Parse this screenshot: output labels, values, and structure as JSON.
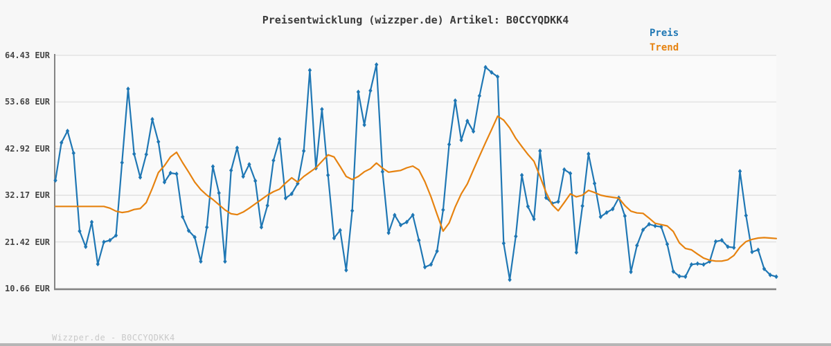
{
  "header": {
    "title": "Preisentwicklung (wizzper.de) Artikel: B0CCYQDKK4"
  },
  "watermark": "Wizzper.de - B0CCYQDKK4",
  "colors": {
    "price": "#1f77b4",
    "trend": "#e6820f",
    "grid": "#e3e3e3",
    "spine": "#848484",
    "background": "#f7f7f7"
  },
  "chart_data": {
    "type": "line",
    "title": "Preisentwicklung (wizzper.de) Artikel: B0CCYQDKK4",
    "xlabel": "",
    "ylabel": "",
    "ylim": [
      10.66,
      64.43
    ],
    "grid": "horizontal",
    "legend_position": "top-right",
    "x_count": 120,
    "y_tick_labels": [
      "64.43 EUR",
      "53.68 EUR",
      "42.92 EUR",
      "32.17 EUR",
      "21.42 EUR",
      "10.66 EUR"
    ],
    "y_tick_values": [
      64.43,
      53.68,
      42.92,
      32.17,
      21.42,
      10.66
    ],
    "series": [
      {
        "name": "Preis",
        "color": "#1f77b4",
        "marker": "diamond",
        "values": [
          35.6,
          44.3,
          47.0,
          41.9,
          23.9,
          20.3,
          26.0,
          16.3,
          21.4,
          21.8,
          22.9,
          39.7,
          56.7,
          41.7,
          36.3,
          41.6,
          49.7,
          44.5,
          35.2,
          37.3,
          37.1,
          27.2,
          24.0,
          22.5,
          16.9,
          24.8,
          38.8,
          32.7,
          16.9,
          37.9,
          43.1,
          36.5,
          39.3,
          35.5,
          24.8,
          29.8,
          40.2,
          45.1,
          31.5,
          32.5,
          34.9,
          42.4,
          61.0,
          38.4,
          52.0,
          36.8,
          22.3,
          24.1,
          14.9,
          28.6,
          56.0,
          48.4,
          56.3,
          62.3,
          37.6,
          23.5,
          27.6,
          25.3,
          26.0,
          27.6,
          21.8,
          15.6,
          16.2,
          19.3,
          28.8,
          43.9,
          54.0,
          44.9,
          49.3,
          46.9,
          55.1,
          61.7,
          60.5,
          59.5,
          21.1,
          12.7,
          22.7,
          36.8,
          29.6,
          26.7,
          42.4,
          31.6,
          30.3,
          30.7,
          38.1,
          37.2,
          19.0,
          29.7,
          41.7,
          34.9,
          27.2,
          28.2,
          29.0,
          31.6,
          27.4,
          14.5,
          20.6,
          24.2,
          25.5,
          25.1,
          24.9,
          20.9,
          14.6,
          13.5,
          13.4,
          16.2,
          16.4,
          16.2,
          16.9,
          21.5,
          21.8,
          20.3,
          20.1,
          37.7,
          27.5,
          19.1,
          19.6,
          15.2,
          13.8,
          13.4
        ]
      },
      {
        "name": "Trend",
        "color": "#e6820f",
        "marker": "none",
        "values": [
          29.6,
          29.6,
          29.6,
          29.6,
          29.6,
          29.6,
          29.6,
          29.6,
          29.6,
          29.2,
          28.5,
          28.2,
          28.4,
          28.9,
          29.1,
          30.5,
          33.8,
          37.4,
          39.0,
          41.0,
          42.1,
          39.7,
          37.5,
          35.2,
          33.5,
          32.2,
          31.2,
          30.0,
          28.8,
          27.9,
          27.7,
          28.3,
          29.2,
          30.2,
          31.2,
          32.2,
          33.0,
          33.6,
          35.0,
          36.2,
          35.2,
          36.5,
          37.5,
          38.5,
          40.0,
          41.5,
          41.0,
          38.8,
          36.5,
          35.8,
          36.5,
          37.6,
          38.3,
          39.6,
          38.4,
          37.5,
          37.7,
          37.9,
          38.5,
          38.9,
          38.0,
          35.3,
          31.8,
          27.8,
          23.9,
          25.8,
          29.5,
          32.5,
          34.8,
          38.0,
          41.2,
          44.3,
          47.3,
          50.4,
          49.5,
          47.7,
          45.3,
          43.4,
          41.6,
          40.0,
          36.5,
          32.8,
          30.0,
          28.6,
          30.5,
          32.5,
          31.8,
          32.2,
          33.3,
          32.8,
          32.2,
          31.9,
          31.7,
          31.5,
          29.8,
          28.5,
          28.1,
          28.0,
          26.9,
          25.7,
          25.4,
          25.1,
          23.8,
          21.2,
          19.9,
          19.6,
          18.6,
          17.7,
          17.2,
          17.0,
          17.0,
          17.3,
          18.3,
          20.2,
          21.5,
          22.0,
          22.3,
          22.4,
          22.3,
          22.2
        ]
      }
    ]
  }
}
